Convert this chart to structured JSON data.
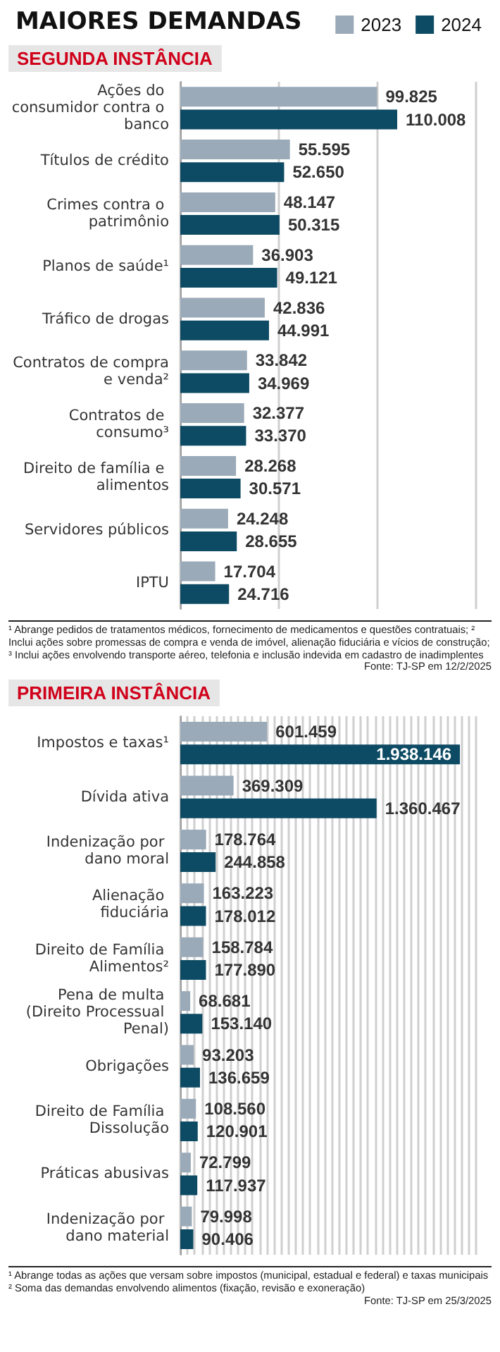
{
  "chart_data": [
    {
      "type": "bar",
      "orientation": "horizontal",
      "title": "MAIORES DEMANDAS",
      "subtitle": "SEGUNDA INSTÂNCIA",
      "categories": [
        "Ações do consumidor contra o banco",
        "Títulos de crédito",
        "Crimes contra o patrimônio",
        "Planos de saúde¹",
        "Tráfico de drogas",
        "Contratos de compra e venda²",
        "Contratos de consumo³",
        "Direito de família e alimentos",
        "Servidores públicos",
        "IPTU"
      ],
      "series": [
        {
          "name": "2023",
          "color": "#9aaab8",
          "values": [
            99825,
            55595,
            48147,
            36903,
            42836,
            33842,
            32377,
            28268,
            24248,
            17704
          ],
          "value_labels": [
            "99.825",
            "55.595",
            "48.147",
            "36.903",
            "42.836",
            "33.842",
            "32.377",
            "28.268",
            "24.248",
            "17.704"
          ]
        },
        {
          "name": "2024",
          "color": "#0d4a63",
          "values": [
            110008,
            52650,
            50315,
            49121,
            44991,
            34969,
            33370,
            30571,
            28655,
            24716
          ],
          "value_labels": [
            "110.008",
            "52.650",
            "50.315",
            "49.121",
            "44.991",
            "34.969",
            "33.370",
            "30.571",
            "28.655",
            "24.716"
          ]
        }
      ],
      "xlim": [
        0,
        150000
      ],
      "xticks": [
        {
          "value": 0,
          "label": null
        },
        {
          "value": 50000,
          "label": null
        },
        {
          "value": 100000,
          "label": null
        },
        {
          "value": 150000,
          "label": null
        }
      ],
      "grid": "x",
      "legend": "top right",
      "annotations": [
        "¹ Abrange pedidos de tratamentos médicos, fornecimento de medicamentos e questões contratuais;  ² Inclui ações sobre promessas de compra e venda de imóvel, alienação fiduciária e vícios de construção;  ³ Inclui ações envolvendo transporte aéreo, telefonia e inclusão indevida em cadastro de inadimplentes",
        "Fonte: TJ-SP em 12/2/2025"
      ]
    },
    {
      "type": "bar",
      "orientation": "horizontal",
      "title": "PRIMEIRA INSTÂNCIA",
      "categories": [
        "Impostos e taxas¹",
        "Dívida ativa",
        "Indenização por dano moral",
        "Alienação fiduciária",
        "Direito de Família Alimentos²",
        "Pena de multa (Direito Processual Penal)",
        "Obrigações",
        "Direito de Família Dissolução",
        "Práticas abusivas",
        "Indenização por dano material"
      ],
      "series": [
        {
          "color": "#9aaab8",
          "values": [
            601459,
            369309,
            178764,
            163223,
            158784,
            68681,
            93203,
            108560,
            72799,
            79998
          ],
          "value_labels": [
            "601.459",
            "369.309",
            "178.764",
            "163.223",
            "158.784",
            "68.681",
            "93.203",
            "108.560",
            "72.799",
            "79.998"
          ]
        },
        {
          "color": "#0d4a63",
          "values": [
            1938146,
            1360467,
            244858,
            178012,
            177890,
            153140,
            136659,
            120901,
            117937,
            90406
          ],
          "value_labels": [
            "1.938.146",
            "1.360.467",
            "244.858",
            "178.012",
            "177.890",
            "153.140",
            "136.659",
            "120.901",
            "117.937",
            "90.406"
          ]
        }
      ],
      "xlim": [
        0,
        2050000
      ],
      "xticks": [
        {
          "value": 0,
          "label": null
        },
        {
          "value": 50000,
          "label": null
        },
        {
          "value": 100000,
          "label": null
        },
        {
          "value": 150000,
          "label": null
        },
        {
          "value": 200000,
          "label": null
        },
        {
          "value": 250000,
          "label": null
        },
        {
          "value": 300000,
          "label": null
        },
        {
          "value": 350000,
          "label": null
        },
        {
          "value": 400000,
          "label": null
        },
        {
          "value": 450000,
          "label": null
        },
        {
          "value": 500000,
          "label": null
        },
        {
          "value": 550000,
          "label": null
        },
        {
          "value": 600000,
          "label": null
        },
        {
          "value": 650000,
          "label": null
        },
        {
          "value": 700000,
          "label": null
        },
        {
          "value": 750000,
          "label": null
        },
        {
          "value": 800000,
          "label": null
        },
        {
          "value": 850000,
          "label": null
        },
        {
          "value": 900000,
          "label": null
        },
        {
          "value": 950000,
          "label": null
        },
        {
          "value": 1000000,
          "label": null
        },
        {
          "value": 1050000,
          "label": null
        },
        {
          "value": 1100000,
          "label": null
        },
        {
          "value": 1150000,
          "label": null
        },
        {
          "value": 1200000,
          "label": null
        },
        {
          "value": 1250000,
          "label": null
        },
        {
          "value": 1300000,
          "label": null
        },
        {
          "value": 1350000,
          "label": null
        },
        {
          "value": 1400000,
          "label": null
        },
        {
          "value": 1450000,
          "label": null
        },
        {
          "value": 1500000,
          "label": null
        },
        {
          "value": 1550000,
          "label": null
        },
        {
          "value": 1600000,
          "label": null
        },
        {
          "value": 1650000,
          "label": null
        },
        {
          "value": 1700000,
          "label": null
        },
        {
          "value": 1750000,
          "label": null
        },
        {
          "value": 1800000,
          "label": null
        },
        {
          "value": 1850000,
          "label": null
        },
        {
          "value": 1900000,
          "label": null
        },
        {
          "value": 1950000,
          "label": null
        },
        {
          "value": 2000000,
          "label": null
        },
        {
          "value": 2050000,
          "label": null
        }
      ],
      "grid": "x",
      "legend": false,
      "annotations": [
        "¹ Abrange todas as ações que versam sobre impostos (municipal, estadual e federal)  e taxas municipais",
        "² Soma das demandas envolvendo alimentos (fixação, revisão e exoneração)",
        "Fonte: TJ-SP em 25/3/2025"
      ]
    }
  ]
}
